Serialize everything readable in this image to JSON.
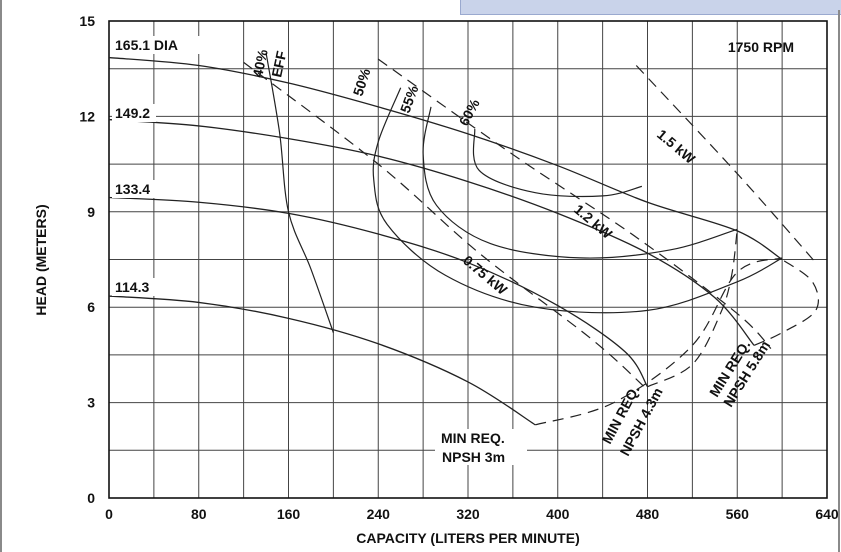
{
  "chart_data": {
    "type": "line",
    "title": "",
    "xlabel": "CAPACITY (LITERS PER MINUTE)",
    "ylabel": "HEAD (METERS)",
    "xlim": [
      0,
      640
    ],
    "ylim": [
      0,
      15
    ],
    "x_ticks": [
      0,
      80,
      160,
      240,
      320,
      400,
      480,
      560,
      640
    ],
    "y_ticks": [
      0,
      3,
      6,
      9,
      12,
      15
    ],
    "x_grid": [
      0,
      40,
      80,
      120,
      160,
      200,
      240,
      280,
      320,
      360,
      400,
      440,
      480,
      520,
      560,
      600,
      640
    ],
    "y_grid": [
      0,
      1.5,
      3,
      4.5,
      6,
      7.5,
      9,
      10.5,
      12,
      13.5,
      15
    ],
    "grid": true,
    "speed_label": "1750 RPM",
    "impeller_curves": [
      {
        "label": "165.1  DIA",
        "points": [
          [
            0,
            13.85
          ],
          [
            80,
            13.6
          ],
          [
            160,
            13.05
          ],
          [
            240,
            12.3
          ],
          [
            320,
            11.45
          ],
          [
            400,
            10.45
          ],
          [
            480,
            9.3
          ],
          [
            560,
            8.4
          ],
          [
            600,
            7.5
          ]
        ]
      },
      {
        "label": "149.2",
        "points": [
          [
            0,
            11.9
          ],
          [
            80,
            11.7
          ],
          [
            160,
            11.3
          ],
          [
            240,
            10.75
          ],
          [
            320,
            9.95
          ],
          [
            400,
            8.95
          ],
          [
            480,
            7.7
          ],
          [
            540,
            6.3
          ],
          [
            575,
            4.8
          ]
        ]
      },
      {
        "label": "133.4",
        "points": [
          [
            0,
            9.45
          ],
          [
            80,
            9.3
          ],
          [
            160,
            8.95
          ],
          [
            240,
            8.3
          ],
          [
            320,
            7.4
          ],
          [
            400,
            6.05
          ],
          [
            460,
            4.6
          ],
          [
            480,
            3.5
          ]
        ]
      },
      {
        "label": "114.3",
        "points": [
          [
            0,
            6.35
          ],
          [
            80,
            6.15
          ],
          [
            160,
            5.65
          ],
          [
            240,
            4.85
          ],
          [
            320,
            3.65
          ],
          [
            380,
            2.3
          ]
        ]
      }
    ],
    "efficiency_curves": [
      {
        "label": "40%",
        "label2": "EFF",
        "points": [
          [
            140,
            14.0
          ],
          [
            152,
            11.5
          ],
          [
            160,
            9.0
          ],
          [
            180,
            7.2
          ],
          [
            200,
            5.2
          ]
        ]
      },
      {
        "label": "50%",
        "points": [
          [
            260,
            12.9
          ],
          [
            240,
            11.2
          ],
          [
            236,
            10.0
          ],
          [
            248,
            8.6
          ],
          [
            300,
            7.0
          ],
          [
            380,
            6.0
          ],
          [
            480,
            5.9
          ],
          [
            560,
            6.8
          ],
          [
            600,
            7.55
          ]
        ]
      },
      {
        "label": "55%",
        "points": [
          [
            287,
            12.3
          ],
          [
            280,
            10.8
          ],
          [
            292,
            9.2
          ],
          [
            340,
            8.0
          ],
          [
            420,
            7.55
          ],
          [
            500,
            7.8
          ],
          [
            560,
            8.45
          ]
        ]
      },
      {
        "label": "60%",
        "points": [
          [
            326,
            11.6
          ],
          [
            330,
            10.3
          ],
          [
            380,
            9.6
          ],
          [
            440,
            9.5
          ],
          [
            475,
            9.8
          ]
        ]
      }
    ],
    "power_lines": [
      {
        "label": "0.75 kW",
        "points": [
          [
            120,
            13.7
          ],
          [
            240,
            10.5
          ],
          [
            330,
            7.7
          ],
          [
            430,
            5.0
          ],
          [
            480,
            3.4
          ]
        ]
      },
      {
        "label": "1.2 kW",
        "points": [
          [
            240,
            13.8
          ],
          [
            360,
            10.8
          ],
          [
            470,
            8.2
          ],
          [
            560,
            5.8
          ],
          [
            590,
            4.7
          ]
        ]
      },
      {
        "label": "1.5 kW",
        "points": [
          [
            470,
            13.6
          ],
          [
            560,
            10.2
          ],
          [
            630,
            7.4
          ]
        ]
      }
    ],
    "npsh_curves": [
      {
        "label": "MIN REQ.",
        "label2": "NPSH 3m",
        "points": [
          [
            380,
            2.3
          ],
          [
            450,
            3.0
          ],
          [
            520,
            4.8
          ],
          [
            560,
            7.1
          ],
          [
            600,
            7.55
          ]
        ]
      },
      {
        "label": "MIN REQ.",
        "label2": "NPSH 4.3m",
        "points": [
          [
            480,
            3.5
          ],
          [
            520,
            4.2
          ],
          [
            545,
            5.8
          ],
          [
            555,
            7.0
          ],
          [
            560,
            8.45
          ]
        ]
      },
      {
        "label": "MIN REQ.",
        "label2": "NPSH 5.8m",
        "points": [
          [
            575,
            4.8
          ],
          [
            600,
            5.2
          ],
          [
            630,
            5.9
          ],
          [
            627,
            6.8
          ],
          [
            600,
            7.5
          ]
        ]
      }
    ]
  }
}
